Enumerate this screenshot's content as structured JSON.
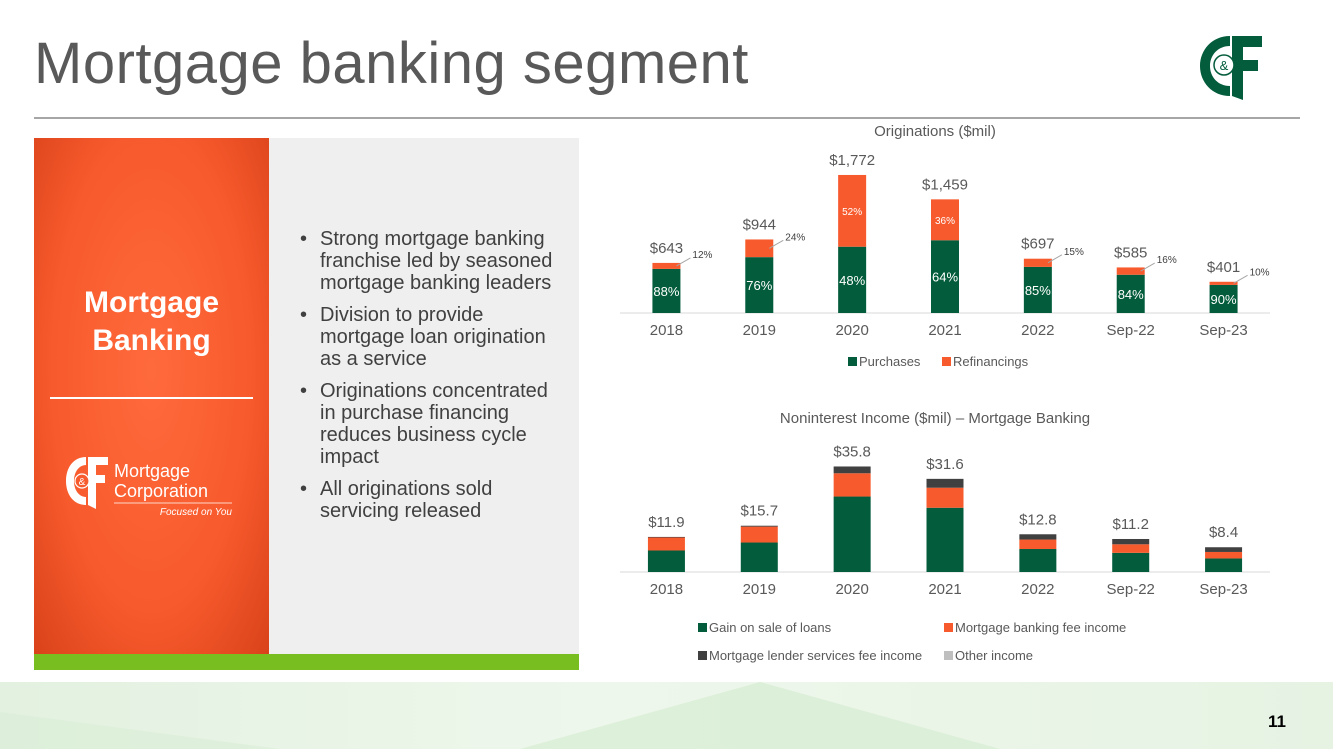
{
  "slide": {
    "title": "Mortgage banking segment",
    "page_number": "11"
  },
  "logo": {
    "icon": "cf-monogram-logo",
    "text": "C&F"
  },
  "left_panel": {
    "heading_line1": "Mortgage",
    "heading_line2": "Banking",
    "logo_text_line1": "Mortgage",
    "logo_text_line2": "Corporation",
    "logo_tagline": "Focused on You",
    "bullets": [
      "Strong mortgage banking franchise led by seasoned mortgage banking leaders",
      "Division to provide mortgage loan origination as a service",
      "Originations concentrated in purchase financing reduces business cycle impact",
      "All originations sold servicing released"
    ]
  },
  "colors": {
    "accent_orange": "#f75a2c",
    "dark_green": "#035c3c",
    "dark_gray": "#404040",
    "light_green": "#78be21"
  },
  "chart_data": [
    {
      "type": "bar",
      "stacked": true,
      "title": "Originations ($mil)",
      "categories": [
        "2018",
        "2019",
        "2020",
        "2021",
        "2022",
        "Sep-22",
        "Sep-23"
      ],
      "totals": [
        643,
        944,
        1772,
        1459,
        697,
        585,
        401
      ],
      "total_labels": [
        "$643",
        "$944",
        "$1,772",
        "$1,459",
        "$697",
        "$585",
        "$401"
      ],
      "series": [
        {
          "name": "Purchases",
          "color": "#035c3c",
          "values": [
            566,
            717,
            851,
            934,
            592,
            491,
            361
          ],
          "percent_labels": [
            "88%",
            "76%",
            "48%",
            "64%",
            "85%",
            "84%",
            "90%"
          ]
        },
        {
          "name": "Refinancings",
          "color": "#f75a2c",
          "values": [
            77,
            227,
            921,
            525,
            105,
            94,
            40
          ],
          "percent_labels": [
            "12%",
            "24%",
            "52%",
            "36%",
            "15%",
            "16%",
            "10%"
          ]
        }
      ],
      "ylim": [
        0,
        1900
      ],
      "legend": "bottom",
      "grid": false
    },
    {
      "type": "bar",
      "stacked": true,
      "title": "Noninterest Income ($mil) – Mortgage Banking",
      "categories": [
        "2018",
        "2019",
        "2020",
        "2021",
        "2022",
        "Sep-22",
        "Sep-23"
      ],
      "totals": [
        11.9,
        15.7,
        35.8,
        31.6,
        12.8,
        11.2,
        8.4
      ],
      "total_labels": [
        "$11.9",
        "$15.7",
        "$35.8",
        "$31.6",
        "$12.8",
        "$11.2",
        "$8.4"
      ],
      "series": [
        {
          "name": "Gain on sale of loans",
          "color": "#035c3c",
          "values": [
            7.3,
            10.0,
            25.6,
            21.8,
            7.8,
            6.5,
            4.6
          ]
        },
        {
          "name": "Mortgage banking fee income",
          "color": "#f75a2c",
          "values": [
            4.4,
            5.4,
            7.9,
            6.8,
            3.2,
            2.9,
            2.2
          ]
        },
        {
          "name": "Mortgage lender services fee income",
          "color": "#404040",
          "values": [
            0.2,
            0.3,
            2.3,
            3.0,
            1.8,
            1.8,
            1.6
          ]
        },
        {
          "name": "Other income",
          "color": "#bfbfbf",
          "values": [
            0.0,
            0.0,
            0.0,
            0.0,
            0.0,
            0.0,
            0.0
          ]
        }
      ],
      "ylim": [
        0,
        38
      ],
      "legend": "bottom",
      "grid": false
    }
  ]
}
